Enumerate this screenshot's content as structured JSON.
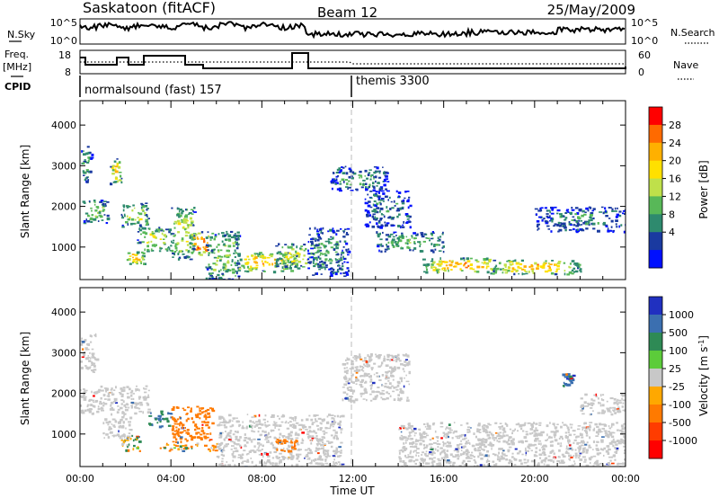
{
  "header": {
    "station": "Saskatoon (fitACF)",
    "beam": "Beam 12",
    "date": "25/May/2009"
  },
  "noise_panel": {
    "left_label": "N.Sky",
    "left_ticks": [
      "10^5",
      "10^0"
    ],
    "right_ticks": [
      "10^5",
      "10^0"
    ],
    "right_label": "N.Search"
  },
  "freq_panel": {
    "left_label_line1": "Freq.",
    "left_label_line2": "[MHz]",
    "left_ticks": [
      "18",
      "8"
    ],
    "right_ticks": [
      "60",
      "0"
    ],
    "right_label": "Nave"
  },
  "cpid": {
    "label": "CPID",
    "modes": [
      {
        "name": "normalsound (fast) 157",
        "start_hour": 0
      },
      {
        "name": "themis 3300",
        "start_hour": 12
      }
    ]
  },
  "time_axis": {
    "label": "Time UT",
    "ticks": [
      "00:00",
      "04:00",
      "08:00",
      "12:00",
      "16:00",
      "20:00",
      "00:00"
    ]
  },
  "power_colorbar": {
    "label": "Power [dB]",
    "ticks": [
      "28",
      "24",
      "20",
      "16",
      "12",
      "8",
      "4"
    ],
    "colors": [
      "#ff0000",
      "#ff6a00",
      "#ffb000",
      "#ffe000",
      "#bfe04a",
      "#58b858",
      "#2e8a6e",
      "#1a3aa0",
      "#0010ff"
    ]
  },
  "velocity_colorbar": {
    "label_main": "Velocity [m s",
    "label_sup": "-1",
    "label_end": "]",
    "ticks": [
      "1000",
      "500",
      "100",
      "25",
      "-25",
      "-100",
      "-500",
      "-1000"
    ],
    "colors": [
      "#2030c0",
      "#3b6fb0",
      "#2e8a55",
      "#5ccc3a",
      "#c8c8c8",
      "#ffa800",
      "#ff7a00",
      "#ff3c00",
      "#ff0000"
    ],
    "ground_scatter_color": "#c0c0c0"
  },
  "chart_data": [
    {
      "type": "heatmap",
      "title": "Power",
      "xlabel": "Time UT",
      "ylabel": "Slant Range [km]",
      "xlim": [
        0,
        24
      ],
      "ylim": [
        200,
        4600
      ],
      "yticks": [
        "1000",
        "2000",
        "3000",
        "4000"
      ],
      "clim": [
        0,
        32
      ],
      "regions": [
        {
          "t0": 0.0,
          "t1": 0.5,
          "r0": 2600,
          "r1": 3500,
          "value": 10
        },
        {
          "t0": 0.1,
          "t1": 1.2,
          "r0": 1600,
          "r1": 2200,
          "value": 14
        },
        {
          "t0": 1.3,
          "t1": 1.8,
          "r0": 2550,
          "r1": 3200,
          "value": 20
        },
        {
          "t0": 1.8,
          "t1": 3.0,
          "r0": 1500,
          "r1": 2100,
          "value": 16
        },
        {
          "t0": 2.0,
          "t1": 2.8,
          "r0": 600,
          "r1": 900,
          "value": 24
        },
        {
          "t0": 2.5,
          "t1": 4.0,
          "r0": 900,
          "r1": 1500,
          "value": 16
        },
        {
          "t0": 4.0,
          "t1": 5.0,
          "r0": 700,
          "r1": 2000,
          "value": 18
        },
        {
          "t0": 4.8,
          "t1": 5.8,
          "r0": 800,
          "r1": 1400,
          "value": 26
        },
        {
          "t0": 5.5,
          "t1": 7.0,
          "r0": 200,
          "r1": 1400,
          "value": 14
        },
        {
          "t0": 6.8,
          "t1": 9.5,
          "r0": 400,
          "r1": 900,
          "value": 22
        },
        {
          "t0": 8.5,
          "t1": 10.5,
          "r0": 500,
          "r1": 1100,
          "value": 18
        },
        {
          "t0": 10.0,
          "t1": 11.8,
          "r0": 300,
          "r1": 1500,
          "value": 10
        },
        {
          "t0": 11.0,
          "t1": 13.5,
          "r0": 2400,
          "r1": 3000,
          "value": 10
        },
        {
          "t0": 12.5,
          "t1": 14.5,
          "r0": 1500,
          "r1": 2400,
          "value": 8
        },
        {
          "t0": 13.0,
          "t1": 16.0,
          "r0": 900,
          "r1": 1400,
          "value": 12
        },
        {
          "t0": 15.0,
          "t1": 18.5,
          "r0": 400,
          "r1": 750,
          "value": 24
        },
        {
          "t0": 18.0,
          "t1": 22.0,
          "r0": 350,
          "r1": 700,
          "value": 22
        },
        {
          "t0": 20.0,
          "t1": 24.0,
          "r0": 1400,
          "r1": 2000,
          "value": 8
        }
      ]
    },
    {
      "type": "heatmap",
      "title": "Velocity",
      "xlabel": "Time UT",
      "ylabel": "Slant Range [km]",
      "xlim": [
        0,
        24
      ],
      "ylim": [
        200,
        4600
      ],
      "yticks": [
        "1000",
        "2000",
        "3000",
        "4000"
      ],
      "clim": [
        -1000,
        1000
      ],
      "regions": [
        {
          "t0": 0.0,
          "t1": 0.7,
          "r0": 2500,
          "r1": 3500,
          "value": 0
        },
        {
          "t0": 0.0,
          "t1": 3.0,
          "r0": 1500,
          "r1": 2200,
          "value": 0
        },
        {
          "t0": 1.0,
          "t1": 2.2,
          "r0": 900,
          "r1": 1500,
          "value": 0
        },
        {
          "t0": 1.8,
          "t1": 2.6,
          "r0": 600,
          "r1": 1000,
          "value": 60
        },
        {
          "t0": 3.0,
          "t1": 4.0,
          "r0": 1200,
          "r1": 1600,
          "value": 300
        },
        {
          "t0": 4.0,
          "t1": 5.8,
          "r0": 800,
          "r1": 1700,
          "value": -300
        },
        {
          "t0": 3.5,
          "t1": 6.0,
          "r0": 600,
          "r1": 800,
          "value": -60
        },
        {
          "t0": 6.0,
          "t1": 11.5,
          "r0": 200,
          "r1": 1500,
          "value": 0
        },
        {
          "t0": 8.5,
          "t1": 9.5,
          "r0": 600,
          "r1": 900,
          "value": -300
        },
        {
          "t0": 11.5,
          "t1": 14.5,
          "r0": 1800,
          "r1": 3000,
          "value": 0
        },
        {
          "t0": 14.0,
          "t1": 24.0,
          "r0": 200,
          "r1": 1300,
          "value": 0
        },
        {
          "t0": 21.2,
          "t1": 21.7,
          "r0": 2200,
          "r1": 2500,
          "value": 300
        },
        {
          "t0": 22.0,
          "t1": 24.0,
          "r0": 1500,
          "r1": 2000,
          "value": 0
        }
      ]
    }
  ]
}
